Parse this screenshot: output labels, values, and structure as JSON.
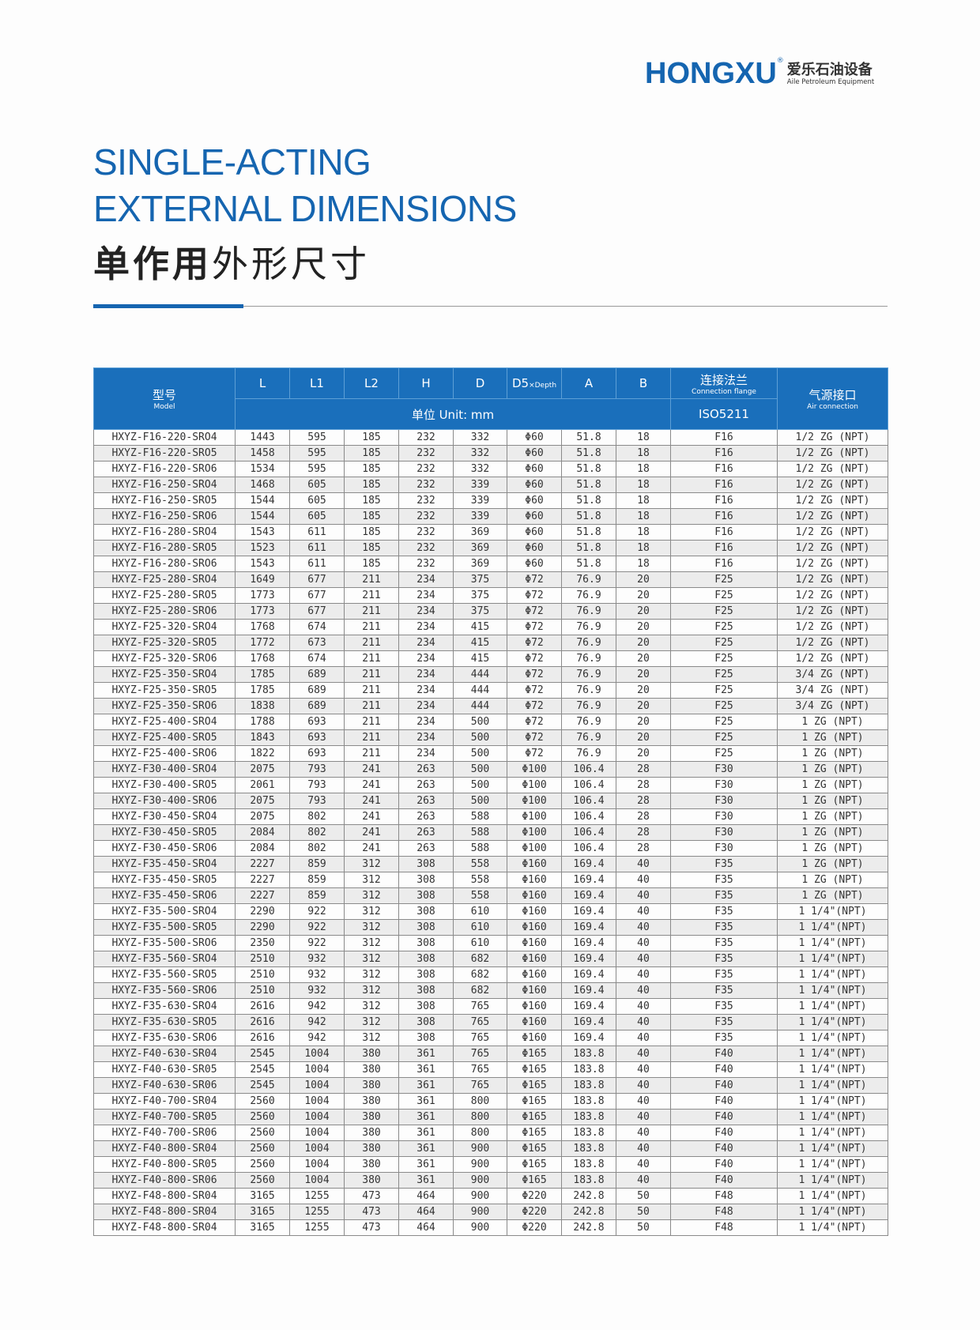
{
  "brand": {
    "logo": "HONGXU",
    "registered": "®",
    "cn": "爱乐石油设备",
    "en": "Aile Petroleum Equipment",
    "color": "#1565b0"
  },
  "title": {
    "line1": "SINGLE-ACTING",
    "line2": "EXTERNAL DIMENSIONS",
    "cn_bold": "单作用",
    "cn_light": "外形尺寸"
  },
  "table": {
    "header": {
      "model_cn": "型号",
      "model_en": "Model",
      "cols": [
        "L",
        "L1",
        "L2",
        "H",
        "D",
        "D5",
        "A",
        "B"
      ],
      "d5_sub": "×Depth",
      "flange_cn": "连接法兰",
      "flange_en": "Connection flange",
      "air_cn": "气源接口",
      "air_en": "Air connection",
      "unit": "单位 Unit:  mm",
      "flange_std": "ISO5211"
    },
    "rows": [
      [
        "HXYZ-F16-220-SRO4",
        "1443",
        "595",
        "185",
        "232",
        "332",
        "Φ60",
        "51.8",
        "18",
        "F16",
        "1/2 ZG (NPT)"
      ],
      [
        "HXYZ-F16-220-SRO5",
        "1458",
        "595",
        "185",
        "232",
        "332",
        "Φ60",
        "51.8",
        "18",
        "F16",
        "1/2 ZG (NPT)"
      ],
      [
        "HXYZ-F16-220-SRO6",
        "1534",
        "595",
        "185",
        "232",
        "332",
        "Φ60",
        "51.8",
        "18",
        "F16",
        "1/2 ZG (NPT)"
      ],
      [
        "HXYZ-F16-250-SRO4",
        "1468",
        "605",
        "185",
        "232",
        "339",
        "Φ60",
        "51.8",
        "18",
        "F16",
        "1/2 ZG (NPT)"
      ],
      [
        "HXYZ-F16-250-SRO5",
        "1544",
        "605",
        "185",
        "232",
        "339",
        "Φ60",
        "51.8",
        "18",
        "F16",
        "1/2 ZG (NPT)"
      ],
      [
        "HXYZ-F16-250-SRO6",
        "1544",
        "605",
        "185",
        "232",
        "339",
        "Φ60",
        "51.8",
        "18",
        "F16",
        "1/2 ZG (NPT)"
      ],
      [
        "HXYZ-F16-280-SRO4",
        "1543",
        "611",
        "185",
        "232",
        "369",
        "Φ60",
        "51.8",
        "18",
        "F16",
        "1/2 ZG (NPT)"
      ],
      [
        "HXYZ-F16-280-SRO5",
        "1523",
        "611",
        "185",
        "232",
        "369",
        "Φ60",
        "51.8",
        "18",
        "F16",
        "1/2 ZG (NPT)"
      ],
      [
        "HXYZ-F16-280-SRO6",
        "1543",
        "611",
        "185",
        "232",
        "369",
        "Φ60",
        "51.8",
        "18",
        "F16",
        "1/2 ZG (NPT)"
      ],
      [
        "HXYZ-F25-280-SRO4",
        "1649",
        "677",
        "211",
        "234",
        "375",
        "Φ72",
        "76.9",
        "20",
        "F25",
        "1/2 ZG (NPT)"
      ],
      [
        "HXYZ-F25-280-SRO5",
        "1773",
        "677",
        "211",
        "234",
        "375",
        "Φ72",
        "76.9",
        "20",
        "F25",
        "1/2 ZG (NPT)"
      ],
      [
        "HXYZ-F25-280-SRO6",
        "1773",
        "677",
        "211",
        "234",
        "375",
        "Φ72",
        "76.9",
        "20",
        "F25",
        "1/2 ZG (NPT)"
      ],
      [
        "HXYZ-F25-320-SRO4",
        "1768",
        "674",
        "211",
        "234",
        "415",
        "Φ72",
        "76.9",
        "20",
        "F25",
        "1/2 ZG (NPT)"
      ],
      [
        "HXYZ-F25-320-SRO5",
        "1772",
        "673",
        "211",
        "234",
        "415",
        "Φ72",
        "76.9",
        "20",
        "F25",
        "1/2 ZG (NPT)"
      ],
      [
        "HXYZ-F25-320-SRO6",
        "1768",
        "674",
        "211",
        "234",
        "415",
        "Φ72",
        "76.9",
        "20",
        "F25",
        "1/2 ZG (NPT)"
      ],
      [
        "HXYZ-F25-350-SRO4",
        "1785",
        "689",
        "211",
        "234",
        "444",
        "Φ72",
        "76.9",
        "20",
        "F25",
        "3/4 ZG (NPT)"
      ],
      [
        "HXYZ-F25-350-SRO5",
        "1785",
        "689",
        "211",
        "234",
        "444",
        "Φ72",
        "76.9",
        "20",
        "F25",
        "3/4 ZG (NPT)"
      ],
      [
        "HXYZ-F25-350-SRO6",
        "1838",
        "689",
        "211",
        "234",
        "444",
        "Φ72",
        "76.9",
        "20",
        "F25",
        "3/4 ZG (NPT)"
      ],
      [
        "HXYZ-F25-400-SRO4",
        "1788",
        "693",
        "211",
        "234",
        "500",
        "Φ72",
        "76.9",
        "20",
        "F25",
        "1 ZG (NPT)"
      ],
      [
        "HXYZ-F25-400-SRO5",
        "1843",
        "693",
        "211",
        "234",
        "500",
        "Φ72",
        "76.9",
        "20",
        "F25",
        "1 ZG (NPT)"
      ],
      [
        "HXYZ-F25-400-SRO6",
        "1822",
        "693",
        "211",
        "234",
        "500",
        "Φ72",
        "76.9",
        "20",
        "F25",
        "1 ZG (NPT)"
      ],
      [
        "HXYZ-F30-400-SRO4",
        "2075",
        "793",
        "241",
        "263",
        "500",
        "Φ100",
        "106.4",
        "28",
        "F30",
        "1 ZG (NPT)"
      ],
      [
        "HXYZ-F30-400-SRO5",
        "2061",
        "793",
        "241",
        "263",
        "500",
        "Φ100",
        "106.4",
        "28",
        "F30",
        "1 ZG (NPT)"
      ],
      [
        "HXYZ-F30-400-SRO6",
        "2075",
        "793",
        "241",
        "263",
        "500",
        "Φ100",
        "106.4",
        "28",
        "F30",
        "1 ZG (NPT)"
      ],
      [
        "HXYZ-F30-450-SRO4",
        "2075",
        "802",
        "241",
        "263",
        "588",
        "Φ100",
        "106.4",
        "28",
        "F30",
        "1 ZG (NPT)"
      ],
      [
        "HXYZ-F30-450-SRO5",
        "2084",
        "802",
        "241",
        "263",
        "588",
        "Φ100",
        "106.4",
        "28",
        "F30",
        "1 ZG (NPT)"
      ],
      [
        "HXYZ-F30-450-SRO6",
        "2084",
        "802",
        "241",
        "263",
        "588",
        "Φ100",
        "106.4",
        "28",
        "F30",
        "1 ZG (NPT)"
      ],
      [
        "HXYZ-F35-450-SRO4",
        "2227",
        "859",
        "312",
        "308",
        "558",
        "Φ160",
        "169.4",
        "40",
        "F35",
        "1 ZG (NPT)"
      ],
      [
        "HXYZ-F35-450-SRO5",
        "2227",
        "859",
        "312",
        "308",
        "558",
        "Φ160",
        "169.4",
        "40",
        "F35",
        "1 ZG (NPT)"
      ],
      [
        "HXYZ-F35-450-SRO6",
        "2227",
        "859",
        "312",
        "308",
        "558",
        "Φ160",
        "169.4",
        "40",
        "F35",
        "1 ZG (NPT)"
      ],
      [
        "HXYZ-F35-500-SRO4",
        "2290",
        "922",
        "312",
        "308",
        "610",
        "Φ160",
        "169.4",
        "40",
        "F35",
        "1 1/4\"(NPT)"
      ],
      [
        "HXYZ-F35-500-SRO5",
        "2290",
        "922",
        "312",
        "308",
        "610",
        "Φ160",
        "169.4",
        "40",
        "F35",
        "1 1/4\"(NPT)"
      ],
      [
        "HXYZ-F35-500-SRO6",
        "2350",
        "922",
        "312",
        "308",
        "610",
        "Φ160",
        "169.4",
        "40",
        "F35",
        "1 1/4\"(NPT)"
      ],
      [
        "HXYZ-F35-560-SRO4",
        "2510",
        "932",
        "312",
        "308",
        "682",
        "Φ160",
        "169.4",
        "40",
        "F35",
        "1 1/4\"(NPT)"
      ],
      [
        "HXYZ-F35-560-SRO5",
        "2510",
        "932",
        "312",
        "308",
        "682",
        "Φ160",
        "169.4",
        "40",
        "F35",
        "1 1/4\"(NPT)"
      ],
      [
        "HXYZ-F35-560-SRO6",
        "2510",
        "932",
        "312",
        "308",
        "682",
        "Φ160",
        "169.4",
        "40",
        "F35",
        "1 1/4\"(NPT)"
      ],
      [
        "HXYZ-F35-630-SRO4",
        "2616",
        "942",
        "312",
        "308",
        "765",
        "Φ160",
        "169.4",
        "40",
        "F35",
        "1 1/4\"(NPT)"
      ],
      [
        "HXYZ-F35-630-SRO5",
        "2616",
        "942",
        "312",
        "308",
        "765",
        "Φ160",
        "169.4",
        "40",
        "F35",
        "1 1/4\"(NPT)"
      ],
      [
        "HXYZ-F35-630-SRO6",
        "2616",
        "942",
        "312",
        "308",
        "765",
        "Φ160",
        "169.4",
        "40",
        "F35",
        "1 1/4\"(NPT)"
      ],
      [
        "HXYZ-F40-630-SR04",
        "2545",
        "1004",
        "380",
        "361",
        "765",
        "Φ165",
        "183.8",
        "40",
        "F40",
        "1 1/4\"(NPT)"
      ],
      [
        "HXYZ-F40-630-SR05",
        "2545",
        "1004",
        "380",
        "361",
        "765",
        "Φ165",
        "183.8",
        "40",
        "F40",
        "1 1/4\"(NPT)"
      ],
      [
        "HXYZ-F40-630-SR06",
        "2545",
        "1004",
        "380",
        "361",
        "765",
        "Φ165",
        "183.8",
        "40",
        "F40",
        "1 1/4\"(NPT)"
      ],
      [
        "HXYZ-F40-700-SR04",
        "2560",
        "1004",
        "380",
        "361",
        "800",
        "Φ165",
        "183.8",
        "40",
        "F40",
        "1 1/4\"(NPT)"
      ],
      [
        "HXYZ-F40-700-SR05",
        "2560",
        "1004",
        "380",
        "361",
        "800",
        "Φ165",
        "183.8",
        "40",
        "F40",
        "1 1/4\"(NPT)"
      ],
      [
        "HXYZ-F40-700-SR06",
        "2560",
        "1004",
        "380",
        "361",
        "800",
        "Φ165",
        "183.8",
        "40",
        "F40",
        "1 1/4\"(NPT)"
      ],
      [
        "HXYZ-F40-800-SR04",
        "2560",
        "1004",
        "380",
        "361",
        "900",
        "Φ165",
        "183.8",
        "40",
        "F40",
        "1 1/4\"(NPT)"
      ],
      [
        "HXYZ-F40-800-SR05",
        "2560",
        "1004",
        "380",
        "361",
        "900",
        "Φ165",
        "183.8",
        "40",
        "F40",
        "1 1/4\"(NPT)"
      ],
      [
        "HXYZ-F40-800-SR06",
        "2560",
        "1004",
        "380",
        "361",
        "900",
        "Φ165",
        "183.8",
        "40",
        "F40",
        "1 1/4\"(NPT)"
      ],
      [
        "HXYZ-F48-800-SR04",
        "3165",
        "1255",
        "473",
        "464",
        "900",
        "Φ220",
        "242.8",
        "50",
        "F48",
        "1 1/4\"(NPT)"
      ],
      [
        "HXYZ-F48-800-SR04",
        "3165",
        "1255",
        "473",
        "464",
        "900",
        "Φ220",
        "242.8",
        "50",
        "F48",
        "1 1/4\"(NPT)"
      ],
      [
        "HXYZ-F48-800-SR04",
        "3165",
        "1255",
        "473",
        "464",
        "900",
        "Φ220",
        "242.8",
        "50",
        "F48",
        "1 1/4\"(NPT)"
      ]
    ]
  }
}
